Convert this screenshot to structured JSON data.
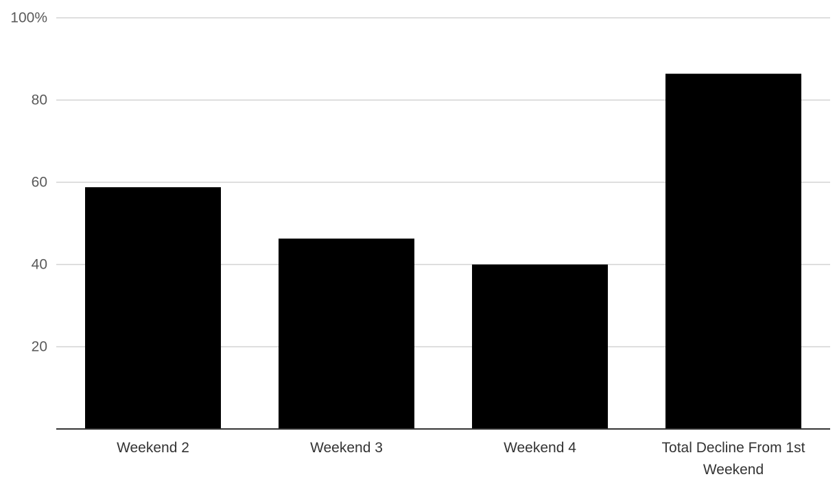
{
  "chart_data": {
    "type": "bar",
    "categories": [
      "Weekend 2",
      "Weekend 3",
      "Weekend 4",
      "Total Decline From 1st Weekend"
    ],
    "category_lines": [
      [
        "Weekend 2"
      ],
      [
        "Weekend 3"
      ],
      [
        "Weekend 4"
      ],
      [
        "Total Decline From 1st",
        "Weekend"
      ]
    ],
    "values": [
      58.8,
      46.3,
      40.0,
      86.4
    ],
    "title": "",
    "xlabel": "",
    "ylabel": "",
    "ylim": [
      0,
      100
    ],
    "yticks": [
      20,
      40,
      60,
      80,
      100
    ],
    "ytick_labels": [
      "20",
      "40",
      "60",
      "80",
      "100%"
    ],
    "grid": true,
    "legend": "none",
    "colors": {
      "bar": "#000000",
      "grid": "#d4d4d4",
      "axis": "#333333"
    }
  }
}
